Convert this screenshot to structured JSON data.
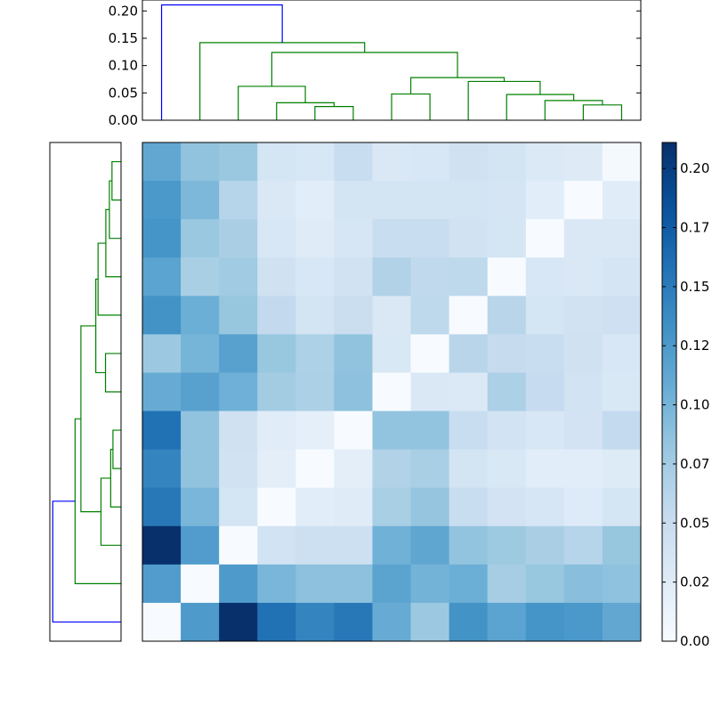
{
  "chart_data": {
    "type": "heatmap",
    "title": "",
    "matrix": [
      [
        0.112,
        0.086,
        0.081,
        0.037,
        0.033,
        0.049,
        0.031,
        0.033,
        0.042,
        0.038,
        0.03,
        0.026,
        0.003
      ],
      [
        0.126,
        0.096,
        0.063,
        0.031,
        0.023,
        0.038,
        0.038,
        0.038,
        0.038,
        0.036,
        0.023,
        0.0,
        0.024
      ],
      [
        0.129,
        0.081,
        0.071,
        0.033,
        0.025,
        0.035,
        0.05,
        0.05,
        0.041,
        0.037,
        0.0,
        0.031,
        0.031
      ],
      [
        0.116,
        0.072,
        0.078,
        0.042,
        0.033,
        0.041,
        0.066,
        0.056,
        0.058,
        0.0,
        0.033,
        0.031,
        0.036
      ],
      [
        0.131,
        0.105,
        0.083,
        0.055,
        0.038,
        0.048,
        0.031,
        0.058,
        0.0,
        0.062,
        0.037,
        0.041,
        0.044
      ],
      [
        0.08,
        0.1,
        0.118,
        0.082,
        0.069,
        0.086,
        0.032,
        0.0,
        0.062,
        0.052,
        0.05,
        0.042,
        0.033
      ],
      [
        0.108,
        0.118,
        0.104,
        0.076,
        0.07,
        0.088,
        0.0,
        0.031,
        0.03,
        0.07,
        0.053,
        0.04,
        0.032
      ],
      [
        0.158,
        0.086,
        0.042,
        0.024,
        0.02,
        0.0,
        0.085,
        0.085,
        0.049,
        0.04,
        0.033,
        0.039,
        0.054
      ],
      [
        0.143,
        0.086,
        0.041,
        0.021,
        0.0,
        0.021,
        0.066,
        0.072,
        0.038,
        0.032,
        0.023,
        0.023,
        0.027
      ],
      [
        0.153,
        0.098,
        0.037,
        0.0,
        0.023,
        0.025,
        0.072,
        0.084,
        0.049,
        0.039,
        0.034,
        0.028,
        0.037
      ],
      [
        0.211,
        0.122,
        0.0,
        0.04,
        0.045,
        0.045,
        0.103,
        0.113,
        0.085,
        0.079,
        0.071,
        0.063,
        0.083
      ],
      [
        0.122,
        0.0,
        0.124,
        0.098,
        0.088,
        0.088,
        0.115,
        0.101,
        0.105,
        0.074,
        0.082,
        0.09,
        0.087
      ],
      [
        0.0,
        0.124,
        0.211,
        0.158,
        0.143,
        0.153,
        0.108,
        0.08,
        0.131,
        0.116,
        0.129,
        0.126,
        0.112
      ]
    ],
    "colorbar": {
      "min": 0.0,
      "max": 0.211,
      "tick_values": [
        0.0,
        0.025,
        0.05,
        0.075,
        0.1,
        0.125,
        0.15,
        0.175,
        0.2
      ],
      "tick_labels": [
        "0.00",
        "0.02",
        "0.05",
        "0.07",
        "0.10",
        "0.12",
        "0.15",
        "0.17",
        "0.20"
      ]
    },
    "top_dendrogram": {
      "ylim": [
        0.0,
        0.22
      ],
      "tick_values": [
        0.0,
        0.05,
        0.1,
        0.15,
        0.2
      ],
      "tick_labels": [
        "0.00",
        "0.05",
        "0.10",
        "0.15",
        "0.20"
      ],
      "links": [
        {
          "left": 4.5,
          "right": 5.5,
          "height": 0.025,
          "left_h": 0.0,
          "right_h": 0.0,
          "color": "#008000"
        },
        {
          "left": 3.5,
          "right": 5.0,
          "height": 0.032,
          "left_h": 0.0,
          "right_h": 0.025,
          "color": "#008000"
        },
        {
          "left": 2.5,
          "right": 4.25,
          "height": 0.062,
          "left_h": 0.0,
          "right_h": 0.032,
          "color": "#008000"
        },
        {
          "left": 11.5,
          "right": 12.5,
          "height": 0.028,
          "left_h": 0.0,
          "right_h": 0.0,
          "color": "#008000"
        },
        {
          "left": 10.5,
          "right": 12.0,
          "height": 0.036,
          "left_h": 0.0,
          "right_h": 0.028,
          "color": "#008000"
        },
        {
          "left": 9.5,
          "right": 11.25,
          "height": 0.047,
          "left_h": 0.0,
          "right_h": 0.036,
          "color": "#008000"
        },
        {
          "left": 8.5,
          "right": 10.375,
          "height": 0.071,
          "left_h": 0.0,
          "right_h": 0.047,
          "color": "#008000"
        },
        {
          "left": 6.5,
          "right": 7.5,
          "height": 0.048,
          "left_h": 0.0,
          "right_h": 0.0,
          "color": "#008000"
        },
        {
          "left": 7.0,
          "right": 9.4375,
          "height": 0.078,
          "left_h": 0.048,
          "right_h": 0.071,
          "color": "#008000"
        },
        {
          "left": 3.375,
          "right": 8.21875,
          "height": 0.124,
          "left_h": 0.062,
          "right_h": 0.078,
          "color": "#008000"
        },
        {
          "left": 1.5,
          "right": 5.796875,
          "height": 0.142,
          "left_h": 0.0,
          "right_h": 0.124,
          "color": "#008000"
        },
        {
          "left": 0.5,
          "right": 3.6484375,
          "height": 0.211,
          "left_h": 0.0,
          "right_h": 0.142,
          "color": "#0000ff"
        }
      ]
    },
    "left_dendrogram": {
      "xlim": [
        0.0,
        0.22
      ],
      "links": [
        {
          "top": 4.5,
          "bottom": 5.5,
          "height": 0.025,
          "top_h": 0.0,
          "bottom_h": 0.0,
          "color": "#008000"
        },
        {
          "top": 3.5,
          "bottom": 5.0,
          "height": 0.032,
          "top_h": 0.0,
          "bottom_h": 0.025,
          "color": "#008000"
        },
        {
          "top": 2.5,
          "bottom": 4.25,
          "height": 0.062,
          "top_h": 0.0,
          "bottom_h": 0.032,
          "color": "#008000"
        },
        {
          "top": 11.5,
          "bottom": 12.5,
          "height": 0.028,
          "top_h": 0.0,
          "bottom_h": 0.0,
          "color": "#008000"
        },
        {
          "top": 10.5,
          "bottom": 12.0,
          "height": 0.036,
          "top_h": 0.0,
          "bottom_h": 0.028,
          "color": "#008000"
        },
        {
          "top": 9.5,
          "bottom": 11.25,
          "height": 0.047,
          "top_h": 0.0,
          "bottom_h": 0.036,
          "color": "#008000"
        },
        {
          "top": 8.5,
          "bottom": 10.375,
          "height": 0.071,
          "top_h": 0.0,
          "bottom_h": 0.047,
          "color": "#008000"
        },
        {
          "top": 6.5,
          "bottom": 7.5,
          "height": 0.048,
          "top_h": 0.0,
          "bottom_h": 0.0,
          "color": "#008000"
        },
        {
          "top": 7.0,
          "bottom": 9.4375,
          "height": 0.078,
          "top_h": 0.048,
          "bottom_h": 0.071,
          "color": "#008000"
        },
        {
          "top": 3.375,
          "bottom": 8.21875,
          "height": 0.124,
          "top_h": 0.062,
          "bottom_h": 0.078,
          "color": "#008000"
        },
        {
          "top": 1.5,
          "bottom": 5.796875,
          "height": 0.142,
          "top_h": 0.0,
          "bottom_h": 0.124,
          "color": "#008000"
        },
        {
          "top": 0.5,
          "bottom": 3.6484375,
          "height": 0.211,
          "top_h": 0.0,
          "bottom_h": 0.142,
          "color": "#0000ff"
        }
      ]
    },
    "colormap": "Blues"
  }
}
